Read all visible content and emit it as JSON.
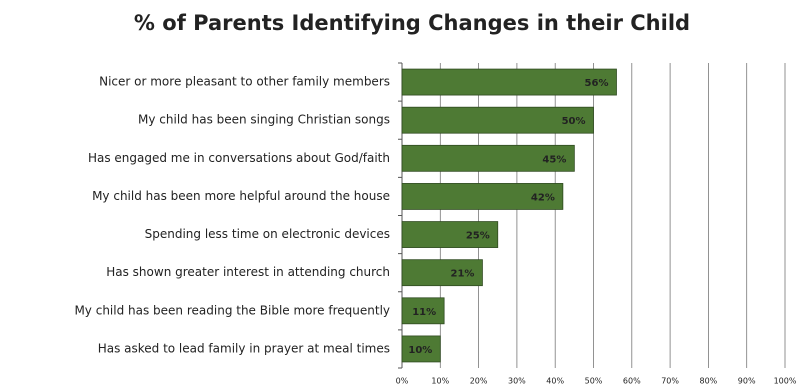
{
  "chart_data": {
    "type": "hbar",
    "title": "% of Parents Identifying Changes in their Child",
    "categories": [
      "Nicer or more pleasant to other family members",
      "My child has been singing Christian songs",
      "Has engaged me in conversations about God/faith",
      "My child has been more helpful around the house",
      "Spending less time on electronic devices",
      "Has shown greater interest in attending church",
      "My child has been reading the Bible more frequently",
      "Has asked to lead family in prayer at meal times"
    ],
    "values": [
      56,
      50,
      45,
      42,
      25,
      21,
      11,
      10
    ],
    "value_labels": [
      "56%",
      "50%",
      "45%",
      "42%",
      "25%",
      "21%",
      "11%",
      "10%"
    ],
    "color": "#4e7a34",
    "xlim": [
      0,
      100
    ],
    "xticks": [
      {
        "value": 0,
        "label": "0%"
      },
      {
        "value": 10,
        "label": "10%"
      },
      {
        "value": 20,
        "label": "20%"
      },
      {
        "value": 30,
        "label": "30%"
      },
      {
        "value": 40,
        "label": "40%"
      },
      {
        "value": 50,
        "label": "50%"
      },
      {
        "value": 60,
        "label": "60%"
      },
      {
        "value": 70,
        "label": "70%"
      },
      {
        "value": 80,
        "label": "80%"
      },
      {
        "value": 90,
        "label": "90%"
      },
      {
        "value": 100,
        "label": "100%"
      }
    ],
    "grid": true
  }
}
